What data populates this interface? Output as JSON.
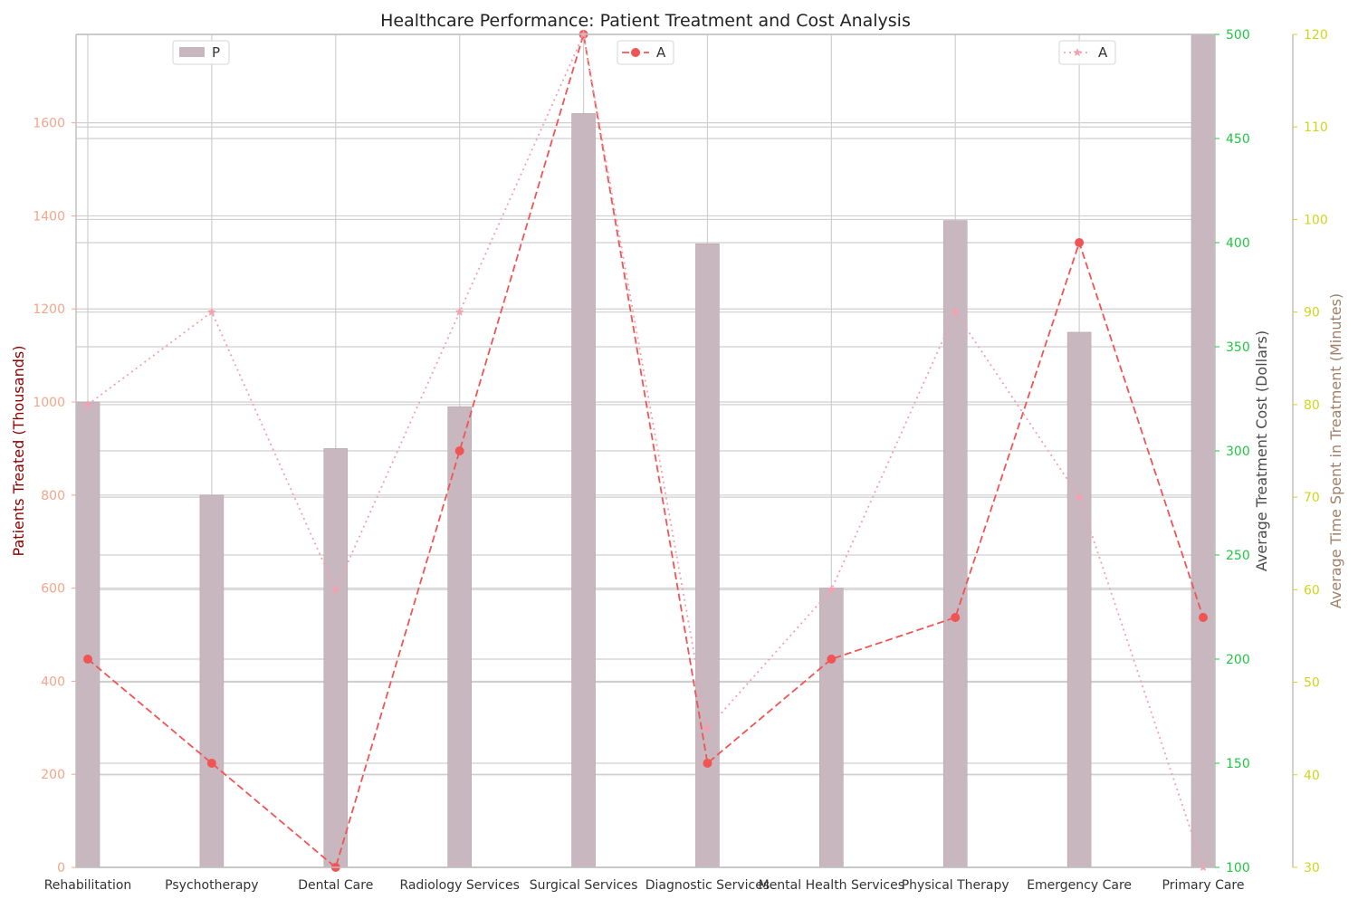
{
  "chart_data": {
    "type": "bar",
    "title": "Healthcare Performance: Patient Treatment and Cost Analysis",
    "categories": [
      "Rehabilitation",
      "Psychotherapy",
      "Dental Care",
      "Radiology Services",
      "Surgical Services",
      "Diagnostic Services",
      "Mental Health Services",
      "Physical Therapy",
      "Emergency Care",
      "Primary Care"
    ],
    "grid": true,
    "axes": {
      "y_left": {
        "label": "Patients Treated (Thousands)",
        "range": [
          0,
          1790
        ],
        "ticks": [
          0,
          200,
          400,
          600,
          800,
          1000,
          1200,
          1400,
          1600
        ]
      },
      "y_right": {
        "label": "Average Treatment Cost (Dollars)",
        "range": [
          100,
          500
        ],
        "ticks": [
          100,
          150,
          200,
          250,
          300,
          350,
          400,
          450,
          500
        ]
      },
      "y_right2": {
        "label": "Average Time Spent in Treatment (Minutes)",
        "range": [
          30,
          120
        ],
        "ticks": [
          30,
          40,
          50,
          60,
          70,
          80,
          90,
          100,
          110,
          120
        ]
      }
    },
    "series": [
      {
        "kind": "bar",
        "axis": "y_left",
        "legend_label": "P",
        "color": "#c9b7bf",
        "values": [
          1000,
          800,
          900,
          990,
          1620,
          1340,
          600,
          1390,
          1150,
          1800
        ]
      },
      {
        "kind": "line",
        "axis": "y_right",
        "legend_label": "A",
        "color": "#f05454",
        "line_style": "dashed",
        "marker": "circle",
        "values": [
          200,
          150,
          100,
          300,
          500,
          150,
          200,
          220,
          400,
          220
        ]
      },
      {
        "kind": "line",
        "axis": "y_right2",
        "legend_label": "A",
        "color": "#f4a0b0",
        "line_style": "dotted",
        "marker": "star",
        "values": [
          80,
          90,
          60,
          90,
          120,
          45,
          60,
          90,
          70,
          30
        ]
      }
    ],
    "legends": [
      {
        "series": 0,
        "position": "top-left"
      },
      {
        "series": 1,
        "position": "top-center"
      },
      {
        "series": 2,
        "position": "top-right"
      }
    ],
    "colors": {
      "left_axis_ticks": "#f4a58a",
      "left_axis_label": "#8b0000",
      "right_axis_ticks": "#22c544",
      "right_axis_label": "#4a4a4a",
      "right2_axis_ticks": "#d0d51a",
      "right2_axis_label": "#a0806a",
      "grid": "#cfcfcf",
      "spine": "#c0c0c0"
    }
  }
}
